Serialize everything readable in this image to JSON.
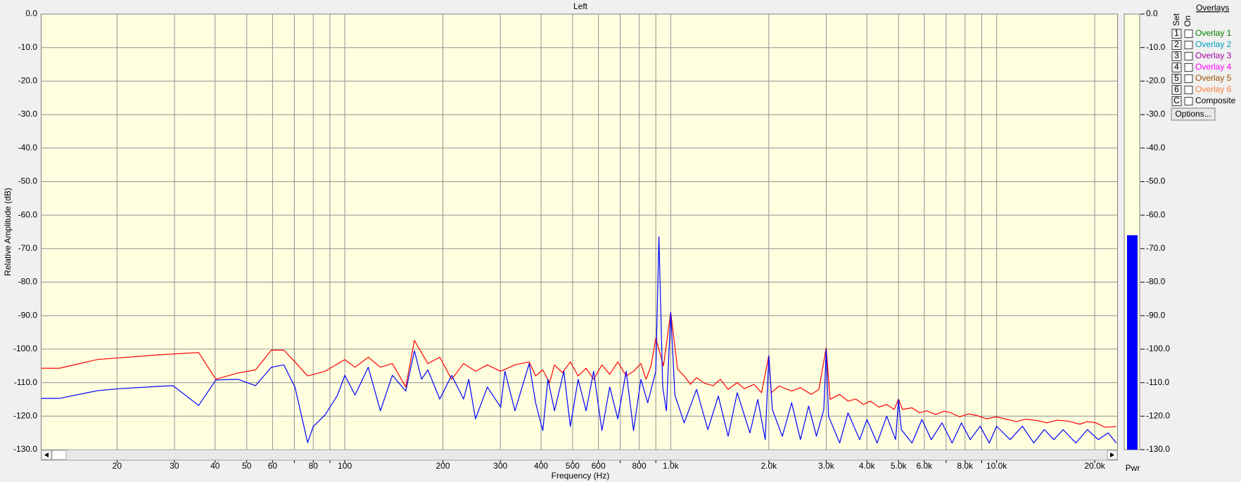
{
  "chart_data": {
    "type": "line",
    "title": "Left",
    "x_label": "Frequency (Hz)",
    "y_label": "Relative Amplitude (dB)",
    "xscale": "log",
    "xlim": [
      11.7,
      23500
    ],
    "ylim": [
      -130,
      0
    ],
    "grid": true,
    "xticks": [
      20,
      30,
      40,
      50,
      60,
      80,
      100,
      200,
      300,
      400,
      500,
      600,
      800,
      {
        "value": 1000,
        "label": "1.0k"
      },
      {
        "value": 2000,
        "label": "2.0k"
      },
      {
        "value": 3000,
        "label": "3.0k"
      },
      {
        "value": 4000,
        "label": "4.0k"
      },
      {
        "value": 5000,
        "label": "5.0k"
      },
      {
        "value": 6000,
        "label": "6.0k"
      },
      {
        "value": 8000,
        "label": "8.0k"
      },
      {
        "value": 10000,
        "label": "10.0k"
      },
      {
        "value": 20000,
        "label": "20.0k"
      }
    ],
    "xgrid_minor": [
      70,
      90,
      700,
      900,
      7000,
      9000
    ],
    "yticks": [
      {
        "value": 0,
        "label": "0.0"
      },
      {
        "value": -10,
        "label": "-10.0"
      },
      {
        "value": -20,
        "label": "-20.0"
      },
      {
        "value": -30,
        "label": "-30.0"
      },
      {
        "value": -40,
        "label": "-40.0"
      },
      {
        "value": -50,
        "label": "-50.0"
      },
      {
        "value": -60,
        "label": "-60.0"
      },
      {
        "value": -70,
        "label": "-70.0"
      },
      {
        "value": -80,
        "label": "-80.0"
      },
      {
        "value": -90,
        "label": "-90.0"
      },
      {
        "value": -100,
        "label": "-100.0"
      },
      {
        "value": -110,
        "label": "-110.0"
      },
      {
        "value": -120,
        "label": "-120.0"
      },
      {
        "value": -130,
        "label": "-130.0"
      }
    ],
    "series": [
      {
        "color": "#ff0000",
        "x": [
          11.7,
          13.3,
          17.4,
          20.3,
          26.9,
          35.6,
          40.2,
          47,
          53.2,
          59.5,
          65,
          70.3,
          76.9,
          87,
          100,
          107.5,
          118,
          128.6,
          139.9,
          153.8,
          163.5,
          179.8,
          195.6,
          212.7,
          231.4,
          251.7,
          273.8,
          300.7,
          332.7,
          368,
          385,
          405,
          425,
          440,
          465,
          492,
          520,
          550,
          580,
          615,
          650,
          688,
          730,
          769,
          810,
          840,
          870,
          900,
          950,
          1000,
          1050,
          1100,
          1150,
          1200,
          1270,
          1350,
          1420,
          1500,
          1600,
          1683,
          1800,
          1900,
          2000,
          2035,
          2150,
          2350,
          2500,
          2700,
          2850,
          3000,
          3084,
          3300,
          3500,
          3700,
          3900,
          4100,
          4350,
          4600,
          4850,
          5000,
          5143,
          5500,
          5800,
          6100,
          6500,
          6900,
          7200,
          7700,
          8200,
          8700,
          9300,
          10000,
          10600,
          11500,
          12300,
          13300,
          14300,
          15300,
          16600,
          18000,
          19000,
          20200,
          21500,
          23300
        ],
        "values": [
          -105.7,
          -105.7,
          -103.1,
          -102.6,
          -101.7,
          -101.0,
          -109.0,
          -107.1,
          -106.2,
          -100.3,
          -100.3,
          -103.8,
          -108.0,
          -106.6,
          -103.1,
          -105.4,
          -102.4,
          -105.4,
          -104.3,
          -111.3,
          -97.4,
          -104.3,
          -102.4,
          -109.0,
          -104.3,
          -106.6,
          -104.7,
          -106.6,
          -104.7,
          -103.8,
          -108.0,
          -106.2,
          -110.0,
          -104.7,
          -107.0,
          -103.8,
          -108.0,
          -105.7,
          -109.0,
          -104.7,
          -107.5,
          -103.8,
          -108.0,
          -106.6,
          -104.3,
          -109.0,
          -105.0,
          -96.7,
          -105.0,
          -89.0,
          -106.0,
          -108.0,
          -110.5,
          -108.5,
          -110.2,
          -110.9,
          -109.0,
          -112.0,
          -110.0,
          -111.8,
          -110.5,
          -113.0,
          -101.9,
          -113.0,
          -111.0,
          -112.5,
          -111.5,
          -113.5,
          -112.0,
          -99.6,
          -115.0,
          -113.5,
          -115.5,
          -114.9,
          -116.5,
          -115.5,
          -117.3,
          -116.5,
          -118.0,
          -114.9,
          -118.0,
          -117.5,
          -119.0,
          -118.4,
          -119.5,
          -118.5,
          -118.9,
          -120.2,
          -119.3,
          -119.8,
          -120.8,
          -120.2,
          -120.8,
          -121.6,
          -120.9,
          -121.3,
          -122.0,
          -121.2,
          -121.5,
          -122.4,
          -121.6,
          -122.0,
          -123.3,
          -123.1
        ]
      },
      {
        "color": "#0000ff",
        "x": [
          11.7,
          13.3,
          17.4,
          20.3,
          26.9,
          29.7,
          35.6,
          40.2,
          47,
          53.2,
          59.5,
          65,
          70.3,
          76.9,
          80,
          87,
          95,
          100,
          107.5,
          118,
          128.6,
          139.9,
          153.8,
          163.5,
          172,
          179.8,
          195.6,
          212.7,
          231.4,
          240,
          251.7,
          273.8,
          300.7,
          310,
          332.7,
          350,
          368,
          385,
          405,
          420,
          440,
          470,
          492,
          520,
          550,
          580,
          615,
          650,
          688,
          730,
          769,
          810,
          850,
          900,
          920,
          945,
          970,
          1000,
          1030,
          1100,
          1200,
          1300,
          1400,
          1500,
          1600,
          1750,
          1850,
          1950,
          2000,
          2050,
          2200,
          2350,
          2500,
          2650,
          2800,
          2950,
          3000,
          3050,
          3300,
          3500,
          3800,
          4000,
          4300,
          4600,
          4900,
          5000,
          5100,
          5500,
          5900,
          6300,
          6800,
          7300,
          7800,
          8300,
          8900,
          9500,
          10000,
          11000,
          12000,
          13000,
          14000,
          15000,
          16000,
          17500,
          19000,
          20500,
          22000,
          23300
        ],
        "values": [
          -114.7,
          -114.7,
          -112.4,
          -111.8,
          -111.1,
          -110.9,
          -116.8,
          -109.2,
          -109.0,
          -110.9,
          -105.4,
          -104.7,
          -111.3,
          -127.9,
          -123.1,
          -119.6,
          -113.7,
          -107.8,
          -113.7,
          -105.4,
          -118.4,
          -107.8,
          -112.5,
          -100.5,
          -109.0,
          -106.2,
          -114.9,
          -107.8,
          -114.9,
          -109.0,
          -120.8,
          -111.3,
          -117.3,
          -106.6,
          -118.4,
          -111.3,
          -104.3,
          -116.0,
          -124.3,
          -109.0,
          -118.4,
          -106.6,
          -123.1,
          -109.0,
          -118.4,
          -106.6,
          -124.3,
          -111.3,
          -120.8,
          -106.6,
          -124.3,
          -109.0,
          -116.0,
          -106.6,
          -66.5,
          -111.3,
          -118.4,
          -89.0,
          -113.7,
          -122,
          -112,
          -124,
          -114,
          -126,
          -113,
          -125,
          -115,
          -127,
          -102,
          -118,
          -126,
          -116,
          -127,
          -117,
          -126,
          -118,
          -100,
          -120,
          -128,
          -119,
          -127,
          -121,
          -128,
          -120,
          -127,
          -115,
          -124,
          -128,
          -121,
          -127,
          -122,
          -128,
          -122,
          -127,
          -123,
          -128,
          -123,
          -127,
          -123,
          -128,
          -124,
          -127,
          -124,
          -128,
          -124,
          -127,
          -125,
          -128
        ]
      }
    ]
  },
  "meter": {
    "label": "Pwr",
    "value": -66,
    "color": "#0000ff"
  },
  "overlays": {
    "title": "Overlays",
    "set_label": "Set",
    "on_label": "On",
    "items": [
      {
        "set": "1",
        "label": "Overlay 1",
        "color": "#008000"
      },
      {
        "set": "2",
        "label": "Overlay 2",
        "color": "#00a0c0"
      },
      {
        "set": "3",
        "label": "Overlay 3",
        "color": "#a000a0"
      },
      {
        "set": "4",
        "label": "Overlay 4",
        "color": "#ff00ff"
      },
      {
        "set": "5",
        "label": "Overlay 5",
        "color": "#a05000"
      },
      {
        "set": "6",
        "label": "Overlay 6",
        "color": "#ff8040"
      },
      {
        "set": "C",
        "label": "Composite",
        "color": "#000000"
      }
    ],
    "button": "Options..."
  }
}
